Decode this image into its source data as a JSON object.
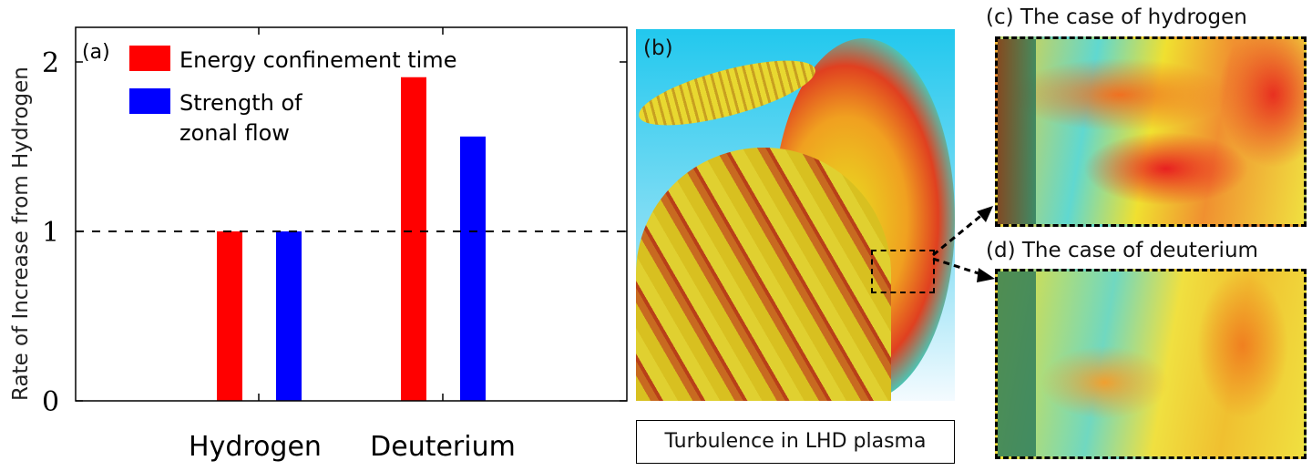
{
  "chart_data": {
    "type": "bar",
    "panel_label": "(a)",
    "categories": [
      "Hydrogen",
      "Deuterium"
    ],
    "series": [
      {
        "name": "Energy confinement time",
        "color": "#ff0000",
        "values": [
          1.0,
          1.91
        ]
      },
      {
        "name": "Strength of zonal flow",
        "color": "#0000ff",
        "values": [
          1.0,
          1.56
        ]
      }
    ],
    "legend_lines": [
      [
        "Energy confinement time"
      ],
      [
        "Strength of",
        "zonal flow"
      ]
    ],
    "ylabel": "Rate of Increase from Hydrogen",
    "xlabel": "",
    "ylim": [
      0,
      2.2
    ],
    "yticks": [
      "0",
      "1",
      "2"
    ],
    "reference_line": 1,
    "legend_placement": "top-left",
    "grid": false
  },
  "panels": {
    "b_label": "(b)",
    "b_caption": "Turbulence in LHD plasma",
    "c_label": "(c) The case of hydrogen",
    "d_label": "(d) The case of deuterium"
  }
}
